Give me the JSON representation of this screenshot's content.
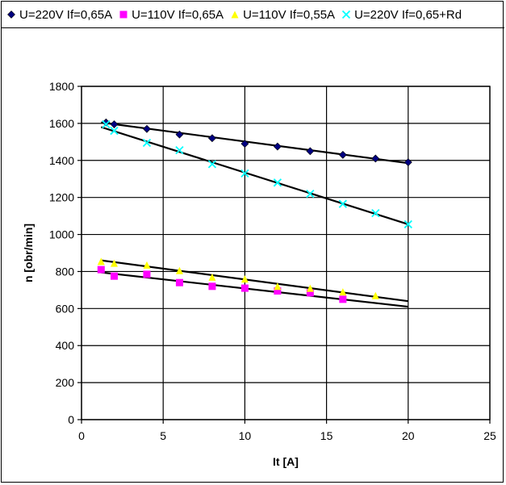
{
  "chart_data": {
    "type": "scatter",
    "title": "",
    "xlabel": "It [A]",
    "ylabel": "n [obr/min]",
    "xlim": [
      0,
      25
    ],
    "ylim": [
      0,
      1800
    ],
    "xticks": [
      0,
      5,
      10,
      15,
      20,
      25
    ],
    "yticks": [
      0,
      200,
      400,
      600,
      800,
      1000,
      1200,
      1400,
      1600,
      1800
    ],
    "grid": true,
    "legend_position": "top",
    "series": [
      {
        "name": "U=220V If=0,65A",
        "marker": "diamond",
        "color": "#000080",
        "x": [
          1.5,
          2,
          4,
          6,
          8,
          10,
          12,
          14,
          16,
          18,
          20
        ],
        "y": [
          1605,
          1595,
          1570,
          1540,
          1520,
          1490,
          1475,
          1450,
          1430,
          1410,
          1390
        ],
        "trend": [
          [
            1.2,
            1605
          ],
          [
            20,
            1385
          ]
        ]
      },
      {
        "name": "U=110V If=0,65A",
        "marker": "square",
        "color": "#ff00ff",
        "x": [
          1.2,
          2,
          4,
          6,
          8,
          10,
          12,
          14,
          16
        ],
        "y": [
          810,
          775,
          785,
          740,
          720,
          710,
          695,
          685,
          650
        ],
        "trend": [
          [
            1.2,
            795
          ],
          [
            20,
            610
          ]
        ]
      },
      {
        "name": "U=110V If=0,55A",
        "marker": "triangle",
        "color": "#ffff00",
        "x": [
          1.2,
          2,
          4,
          6,
          8,
          10,
          12,
          14,
          16,
          18
        ],
        "y": [
          855,
          845,
          835,
          805,
          770,
          760,
          720,
          710,
          690,
          670
        ],
        "trend": [
          [
            1.2,
            860
          ],
          [
            20,
            640
          ]
        ]
      },
      {
        "name": "U=220V If=0,65+Rd",
        "marker": "x",
        "color": "#00ffff",
        "x": [
          1.5,
          2,
          4,
          6,
          8,
          10,
          12,
          14,
          16,
          18,
          20
        ],
        "y": [
          1595,
          1560,
          1495,
          1455,
          1380,
          1330,
          1280,
          1220,
          1165,
          1115,
          1055
        ],
        "trend": [
          [
            1.2,
            1580
          ],
          [
            20,
            1055
          ]
        ]
      }
    ]
  }
}
